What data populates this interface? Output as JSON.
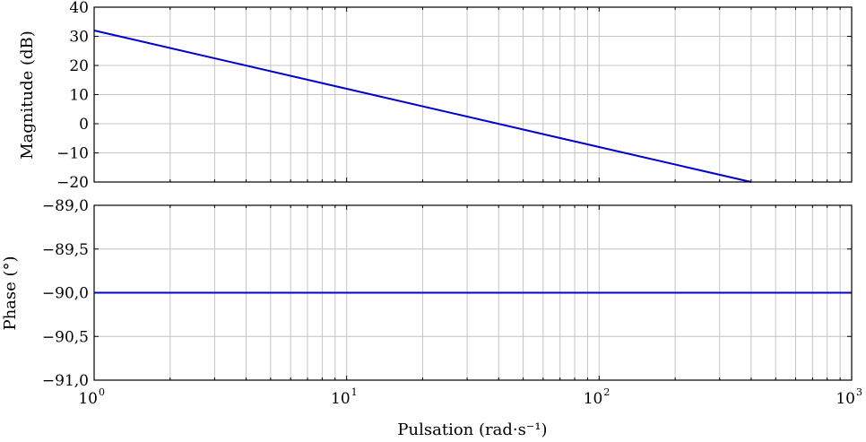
{
  "chart_data": [
    {
      "type": "line",
      "title": "",
      "xlabel": "",
      "ylabel": "Magnitude (dB)",
      "xscale": "log",
      "xlim": [
        1,
        1000
      ],
      "ylim": [
        -20,
        40
      ],
      "y_ticks": [
        "40",
        "30",
        "20",
        "10",
        "0",
        "−10",
        "−20"
      ],
      "y_tick_values": [
        40,
        30,
        20,
        10,
        0,
        -10,
        -20
      ],
      "grid": true,
      "color": "#0000cc",
      "series": [
        {
          "x": [
            1,
            10,
            100,
            400
          ],
          "y": [
            32,
            12,
            -8,
            -20
          ]
        }
      ]
    },
    {
      "type": "line",
      "title": "",
      "xlabel": "Pulsation (rad·s⁻¹)",
      "ylabel": "Phase (°)",
      "xscale": "log",
      "xlim": [
        1,
        1000
      ],
      "ylim": [
        -91,
        -89
      ],
      "y_ticks": [
        "−89,0",
        "−89,5",
        "−90,0",
        "−90,5",
        "−91,0"
      ],
      "y_tick_values": [
        -89,
        -89.5,
        -90,
        -90.5,
        -91
      ],
      "x_ticks": [
        {
          "base": "10",
          "exp": "0",
          "value": 1
        },
        {
          "base": "10",
          "exp": "1",
          "value": 10
        },
        {
          "base": "10",
          "exp": "2",
          "value": 100
        },
        {
          "base": "10",
          "exp": "3",
          "value": 1000
        }
      ],
      "grid": true,
      "color": "#0000cc",
      "series": [
        {
          "x": [
            1,
            1000
          ],
          "y": [
            -90,
            -90
          ]
        }
      ]
    }
  ]
}
